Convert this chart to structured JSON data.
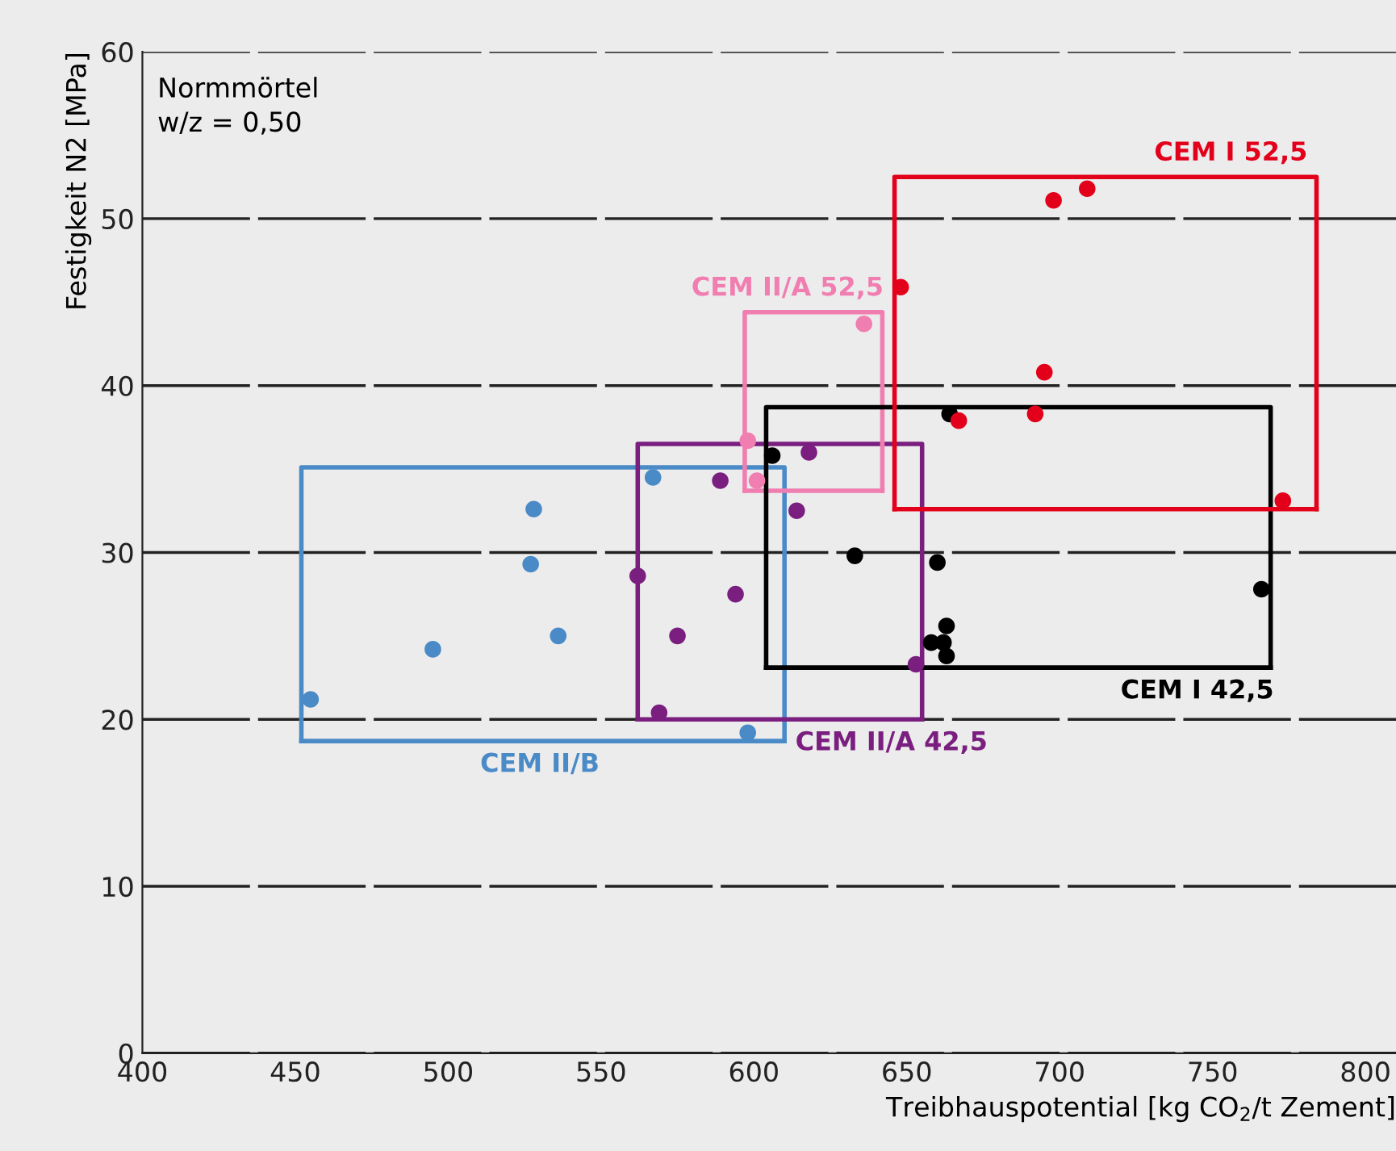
{
  "chart_data": {
    "type": "scatter",
    "xlabel": "Treibhauspotential [kg CO$_{2}$/t Zement]",
    "ylabel": "Festigkeit N2 [MPa]",
    "xlim": [
      400,
      810
    ],
    "xticks": [
      400,
      450,
      500,
      550,
      600,
      650,
      700,
      750,
      800
    ],
    "ylim": [
      0,
      60
    ],
    "yticks": [
      0,
      10,
      20,
      30,
      40,
      50,
      60
    ],
    "grid": "y",
    "marker": "circle",
    "series": [
      {
        "color": "#4a8ac7",
        "x": [
          455,
          495,
          536,
          527,
          528,
          567,
          598
        ],
        "values": [
          21.2,
          24.2,
          25.0,
          29.3,
          32.6,
          34.5,
          19.2
        ]
      },
      {
        "color": "#7a1f7f",
        "x": [
          562,
          575,
          569,
          594,
          589,
          614,
          618,
          653
        ],
        "values": [
          28.6,
          25.0,
          20.4,
          27.5,
          34.3,
          32.5,
          36.0,
          23.3
        ]
      },
      {
        "color": "#f07eb0",
        "x": [
          636,
          598,
          601
        ],
        "values": [
          43.7,
          36.7,
          34.3
        ]
      },
      {
        "color": "#000000",
        "x": [
          606,
          633,
          660,
          663,
          658,
          662,
          663,
          664,
          766
        ],
        "values": [
          35.8,
          29.8,
          29.4,
          25.6,
          24.6,
          24.6,
          23.8,
          38.3,
          27.8
        ]
      },
      {
        "color": "#e3001b",
        "x": [
          648,
          698,
          709,
          695,
          692,
          667,
          773
        ],
        "values": [
          45.9,
          51.1,
          51.8,
          40.8,
          38.3,
          37.9,
          33.1
        ]
      },
      {
        "type": "line",
        "marker": "none",
        "color": "#4a8ac7",
        "x": [
          452,
          452,
          610,
          610
        ],
        "values": [
          18.7,
          35.1,
          35.1,
          18.7
        ]
      },
      {
        "type": "line",
        "marker": "none",
        "color": "#4a8ac7",
        "x": [
          452,
          610
        ],
        "values": [
          18.7,
          18.7
        ]
      },
      {
        "type": "line",
        "marker": "none",
        "color": "#7a1f7f",
        "x": [
          562,
          562,
          655,
          655
        ],
        "values": [
          20.0,
          36.5,
          36.5,
          20.0
        ]
      },
      {
        "type": "line",
        "marker": "none",
        "color": "#7a1f7f",
        "x": [
          562,
          655
        ],
        "values": [
          20.0,
          20.0
        ]
      },
      {
        "type": "line",
        "marker": "none",
        "color": "#f07eb0",
        "x": [
          597,
          597,
          642,
          642
        ],
        "values": [
          33.7,
          44.4,
          44.4,
          33.7
        ]
      },
      {
        "type": "line",
        "marker": "none",
        "color": "#f07eb0",
        "x": [
          597,
          642
        ],
        "values": [
          33.7,
          33.7
        ]
      },
      {
        "type": "line",
        "marker": "none",
        "color": "#000000",
        "x": [
          604,
          604,
          769,
          769
        ],
        "values": [
          23.1,
          38.7,
          38.7,
          23.1
        ]
      },
      {
        "type": "line",
        "marker": "none",
        "color": "#000000",
        "x": [
          604,
          769
        ],
        "values": [
          23.1,
          23.1
        ]
      },
      {
        "type": "line",
        "marker": "none",
        "color": "#e3001b",
        "x": [
          646,
          646,
          784,
          784
        ],
        "values": [
          32.6,
          52.5,
          52.5,
          32.6
        ]
      },
      {
        "type": "line",
        "marker": "none",
        "color": "#e3001b",
        "x": [
          646,
          784
        ],
        "values": [
          32.6,
          32.6
        ]
      }
    ],
    "annotations": [
      "Normmörtel\nw/z = 0,50",
      {
        "text": "CEM II/B",
        "x": 530,
        "y": 18.7
      },
      {
        "text": "CEM II/A 42,5",
        "x": 645,
        "y": 20.0
      },
      {
        "text": "CEM II/A 52,5",
        "x": 611,
        "y": 44.4
      },
      {
        "text": "CEM I 42,5",
        "x": 745,
        "y": 23.1
      },
      {
        "text": "CEM I 52,5",
        "x": 756,
        "y": 52.5
      }
    ]
  }
}
